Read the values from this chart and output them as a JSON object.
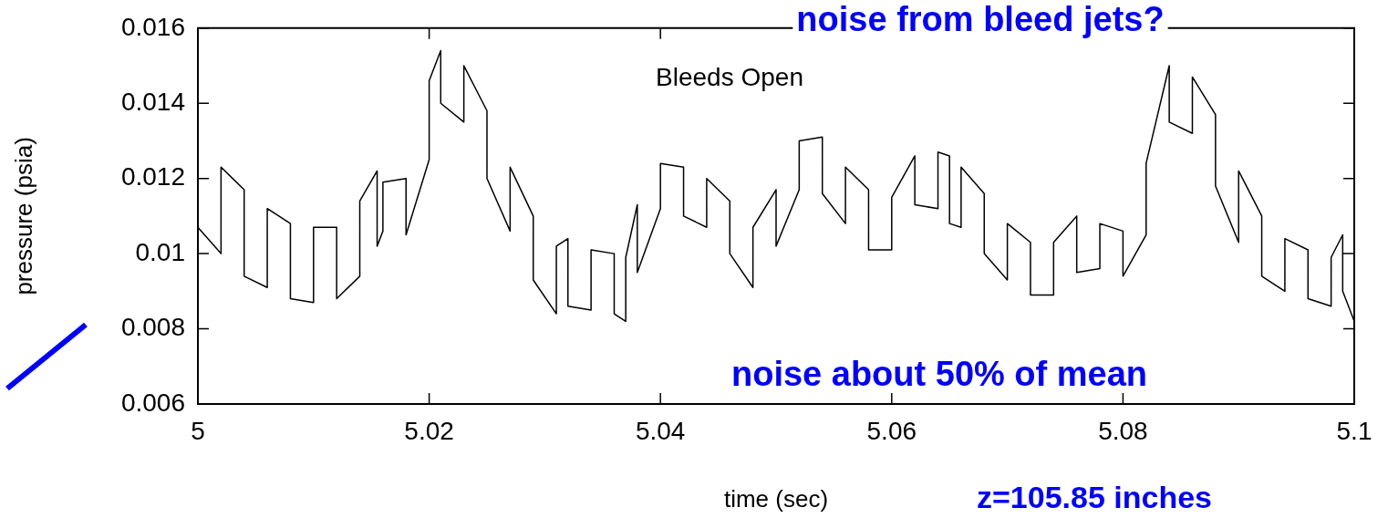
{
  "chart_data": {
    "type": "line",
    "xlabel": "time (sec)",
    "ylabel": "pressure (psia)",
    "annotations": [
      "noise from bleed jets?",
      "Bleeds Open",
      "noise about 50% of mean",
      "z=105.85 inches"
    ],
    "x": [
      5.0,
      5.0,
      5.002,
      5.002,
      5.004,
      5.004,
      5.006,
      5.006,
      5.008,
      5.008,
      5.01,
      5.01,
      5.012,
      5.012,
      5.014,
      5.014,
      5.0155,
      5.0155,
      5.016,
      5.016,
      5.018,
      5.018,
      5.02,
      5.02,
      5.021,
      5.021,
      5.023,
      5.023,
      5.025,
      5.025,
      5.027,
      5.027,
      5.029,
      5.029,
      5.031,
      5.031,
      5.032,
      5.032,
      5.034,
      5.034,
      5.036,
      5.036,
      5.037,
      5.037,
      5.038,
      5.038,
      5.04,
      5.04,
      5.042,
      5.042,
      5.044,
      5.044,
      5.046,
      5.046,
      5.048,
      5.048,
      5.05,
      5.05,
      5.052,
      5.052,
      5.054,
      5.054,
      5.056,
      5.056,
      5.058,
      5.058,
      5.06,
      5.06,
      5.062,
      5.062,
      5.064,
      5.064,
      5.065,
      5.065,
      5.066,
      5.066,
      5.068,
      5.068,
      5.07,
      5.07,
      5.072,
      5.072,
      5.074,
      5.074,
      5.076,
      5.076,
      5.078,
      5.078,
      5.08,
      5.08,
      5.082,
      5.082,
      5.084,
      5.084,
      5.086,
      5.086,
      5.088,
      5.088,
      5.09,
      5.09,
      5.092,
      5.092,
      5.094,
      5.094,
      5.096,
      5.096,
      5.098,
      5.098,
      5.099,
      5.099,
      5.1,
      5.1
    ],
    "series": [
      {
        "color": "#000000",
        "values": [
          0.0127,
          0.0107,
          0.01,
          0.0123,
          0.0117,
          0.0094,
          0.0091,
          0.0112,
          0.0108,
          0.0088,
          0.0087,
          0.0107,
          0.0107,
          0.0088,
          0.0094,
          0.0114,
          0.0122,
          0.0102,
          0.0106,
          0.0119,
          0.012,
          0.0105,
          0.0125,
          0.0146,
          0.0154,
          0.014,
          0.0135,
          0.015,
          0.0138,
          0.012,
          0.0106,
          0.0123,
          0.011,
          0.0093,
          0.0084,
          0.0102,
          0.0104,
          0.0086,
          0.0085,
          0.0101,
          0.01,
          0.0084,
          0.0082,
          0.0099,
          0.0113,
          0.0095,
          0.0112,
          0.0124,
          0.0123,
          0.011,
          0.0107,
          0.012,
          0.0114,
          0.01,
          0.0091,
          0.0107,
          0.0117,
          0.0102,
          0.0117,
          0.013,
          0.0131,
          0.0116,
          0.0108,
          0.0123,
          0.0117,
          0.0101,
          0.0101,
          0.0115,
          0.0126,
          0.0113,
          0.0112,
          0.0127,
          0.0126,
          0.0108,
          0.0107,
          0.0123,
          0.0116,
          0.01,
          0.0093,
          0.0108,
          0.0103,
          0.0089,
          0.0089,
          0.0103,
          0.011,
          0.0095,
          0.0096,
          0.0108,
          0.0106,
          0.0094,
          0.0105,
          0.0124,
          0.015,
          0.0135,
          0.0132,
          0.0147,
          0.0137,
          0.0118,
          0.0103,
          0.0122,
          0.011,
          0.0094,
          0.009,
          0.0104,
          0.0101,
          0.0088,
          0.0086,
          0.0099,
          0.0105,
          0.009,
          0.0082,
          0.0098
        ]
      }
    ],
    "xlim": [
      5,
      5.1
    ],
    "xticks": [
      5,
      5.02,
      5.04,
      5.06,
      5.08,
      5.1
    ],
    "ylim": [
      0.006,
      0.016
    ],
    "yticks": [
      0.006,
      0.008,
      0.01,
      0.012,
      0.014,
      0.016
    ],
    "grid": false,
    "legend": false
  }
}
